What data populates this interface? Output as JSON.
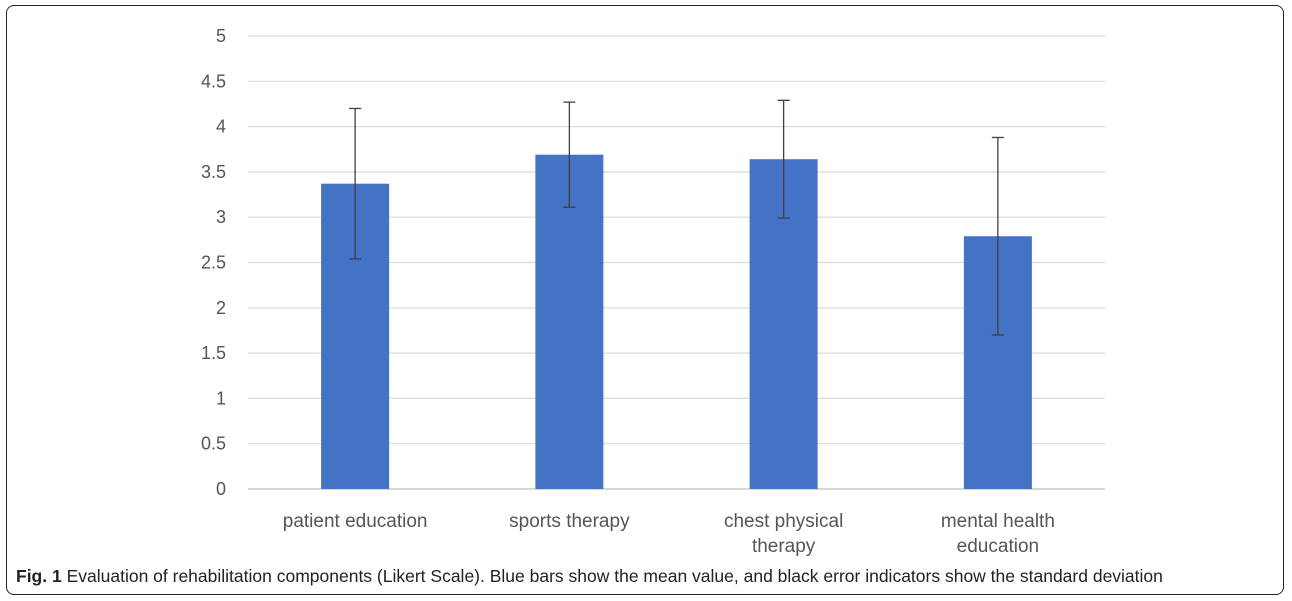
{
  "chart_data": {
    "type": "bar",
    "title": "",
    "xlabel": "",
    "ylabel": "",
    "ylim": [
      0,
      5
    ],
    "yticks": [
      "0",
      "0.5",
      "1",
      "1.5",
      "2",
      "2.5",
      "3",
      "3.5",
      "4",
      "4.5",
      "5"
    ],
    "grid": true,
    "bar_color": "#4472C4",
    "error_color": "#404040",
    "categories": [
      [
        "patient education"
      ],
      [
        "sports therapy"
      ],
      [
        "chest physical",
        "therapy"
      ],
      [
        "mental health",
        "education"
      ]
    ],
    "values": [
      3.37,
      3.69,
      3.64,
      2.79
    ],
    "error": [
      0.83,
      0.58,
      0.65,
      1.09
    ]
  },
  "caption": {
    "label": "Fig. 1",
    "text": "Evaluation of rehabilitation components (Likert Scale). Blue bars show the mean value, and black error indicators show the standard deviation"
  }
}
